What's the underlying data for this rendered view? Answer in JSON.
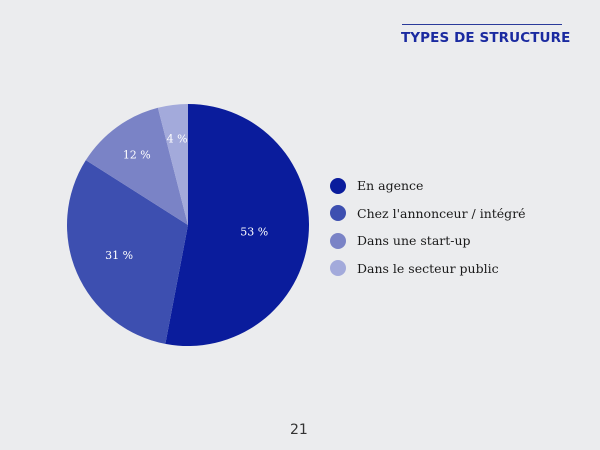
{
  "slide": {
    "title": "TYPES DE STRUCTURE",
    "page_number": "21",
    "colors": {
      "background": "#ebecee",
      "title": "#1a2aa0"
    }
  },
  "legend": {
    "items": [
      {
        "label": "En agence",
        "color": "#0a1c9c"
      },
      {
        "label": "Chez l'annonceur / intégré",
        "color": "#3d4fb0"
      },
      {
        "label": "Dans une start-up",
        "color": "#7a83c6"
      },
      {
        "label": "Dans le secteur public",
        "color": "#a3aadb"
      }
    ]
  },
  "slices": [
    {
      "label": "53 %",
      "color": "#0a1c9c"
    },
    {
      "label": "31 %",
      "color": "#3d4fb0"
    },
    {
      "label": "12 %",
      "color": "#7a83c6"
    },
    {
      "label": "4 %",
      "color": "#a3aadb"
    }
  ],
  "chart_data": {
    "type": "pie",
    "title": "TYPES DE STRUCTURE",
    "categories": [
      "En agence",
      "Chez l'annonceur / intégré",
      "Dans une start-up",
      "Dans le secteur public"
    ],
    "values": [
      53,
      31,
      12,
      4
    ],
    "unit": "%",
    "start_angle": "top (12 o'clock), clockwise",
    "legend_position": "right",
    "colors": [
      "#0a1c9c",
      "#3d4fb0",
      "#7a83c6",
      "#a3aadb"
    ]
  }
}
